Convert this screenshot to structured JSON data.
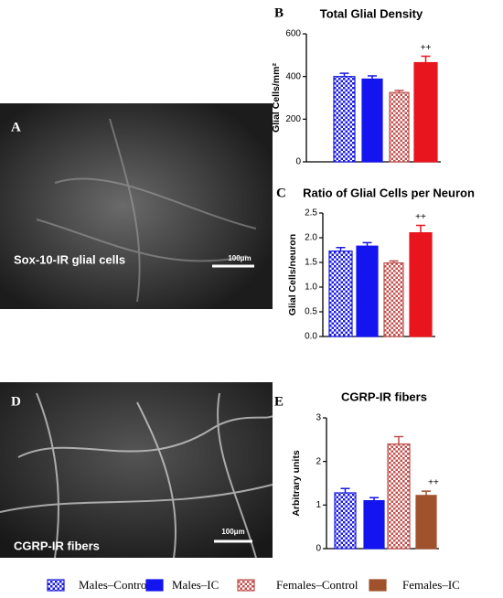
{
  "panels": [
    {
      "letter": "A",
      "caption": "Sox-10-IR glial cells",
      "scale": "100μm"
    },
    {
      "letter": "D",
      "caption": "CGRP-IR fibers",
      "scale": "100μm"
    }
  ],
  "legend": [
    {
      "name": "Males–Control",
      "color": "#1a1adf",
      "pattern": "dots"
    },
    {
      "name": "Males–IC",
      "color": "#1414f0",
      "pattern": "solid"
    },
    {
      "name": "Females–Control",
      "color": "#c0504d",
      "pattern": "dots"
    },
    {
      "name": "Females–IC",
      "color": "#a0522d",
      "pattern": "solid"
    }
  ],
  "chart_data": [
    {
      "type": "bar",
      "label": "B",
      "title": "Total Glial Density",
      "ylabel": "Glial Cells/mm²",
      "values": [
        400,
        388,
        325,
        465
      ],
      "errors": [
        15,
        15,
        10,
        30
      ],
      "colors": [
        "#1a1adf",
        "#1414f0",
        "#c0504d",
        "#e8141e"
      ],
      "ylim": [
        0,
        600
      ],
      "yticks": [
        0,
        200,
        400,
        600
      ],
      "annotations": [
        {
          "text": "++",
          "bar": 3
        }
      ]
    },
    {
      "type": "bar",
      "label": "C",
      "title": "Ratio of Glial Cells per Neuron",
      "ylabel": "Glial Cells/neuron",
      "values": [
        1.73,
        1.83,
        1.49,
        2.1
      ],
      "errors": [
        0.07,
        0.07,
        0.04,
        0.15
      ],
      "colors": [
        "#1a1adf",
        "#1414f0",
        "#c0504d",
        "#e8141e"
      ],
      "ylim": [
        0,
        2.5
      ],
      "yticks": [
        {
          "value": 0,
          "label": "0.0"
        },
        0.5,
        {
          "value": 1,
          "label": "1.0"
        },
        1.5,
        {
          "value": 2,
          "label": "2.0"
        },
        2.5
      ],
      "annotations": [
        {
          "text": "++",
          "bar": 3
        }
      ]
    },
    {
      "type": "bar",
      "label": "E",
      "title": "CGRP-IR fibers",
      "ylabel": "Arbitrary units",
      "values": [
        1.28,
        1.1,
        2.4,
        1.22
      ],
      "errors": [
        0.1,
        0.07,
        0.17,
        0.1
      ],
      "colors": [
        "#1a1adf",
        "#1414f0",
        "#c0504d",
        "#a0522d"
      ],
      "ylim": [
        0,
        3
      ],
      "yticks": [
        0,
        1,
        2,
        3
      ],
      "annotations": [
        {
          "text": "++",
          "bar": 3
        }
      ]
    }
  ]
}
